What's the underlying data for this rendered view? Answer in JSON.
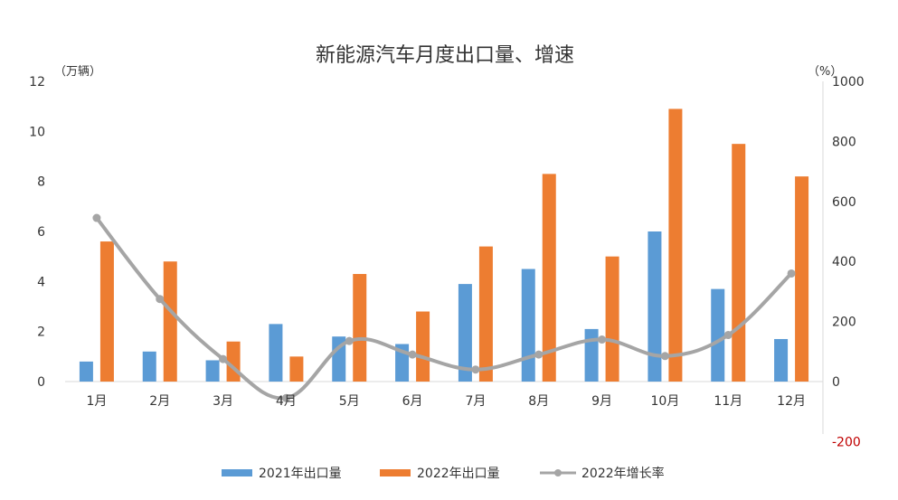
{
  "chart_data": {
    "type": "bar",
    "title": "新能源汽车月度出口量、增速",
    "left_unit": "（万辆）",
    "right_unit": "（%）",
    "categories": [
      "1月",
      "2月",
      "3月",
      "4月",
      "5月",
      "6月",
      "7月",
      "8月",
      "9月",
      "10月",
      "11月",
      "12月"
    ],
    "left_axis": {
      "min": 0,
      "max": 12,
      "ticks": [
        "0",
        "2",
        "4",
        "6",
        "8",
        "10",
        "12"
      ]
    },
    "right_axis": {
      "min": -200,
      "max": 1000,
      "ticks": [
        "-200",
        "0",
        "200",
        "400",
        "600",
        "800",
        "1000"
      ]
    },
    "series": [
      {
        "name": "2021年出口量",
        "type": "bar",
        "axis": "left",
        "color": "#5b9bd5",
        "values": [
          0.8,
          1.2,
          0.85,
          2.3,
          1.8,
          1.5,
          3.9,
          4.5,
          2.1,
          6.0,
          3.7,
          1.7
        ]
      },
      {
        "name": "2022年出口量",
        "type": "bar",
        "axis": "left",
        "color": "#ed7d31",
        "values": [
          5.6,
          4.8,
          1.6,
          1.0,
          4.3,
          2.8,
          5.4,
          8.3,
          5.0,
          10.9,
          9.5,
          8.2
        ]
      },
      {
        "name": "2022年增长率",
        "type": "line",
        "axis": "right",
        "color": "#a5a5a5",
        "values": [
          545,
          275,
          75,
          -55,
          135,
          90,
          40,
          90,
          140,
          85,
          155,
          360
        ]
      }
    ],
    "grid": false,
    "legend_position": "bottom",
    "negative_tick_color": "#c00000"
  }
}
